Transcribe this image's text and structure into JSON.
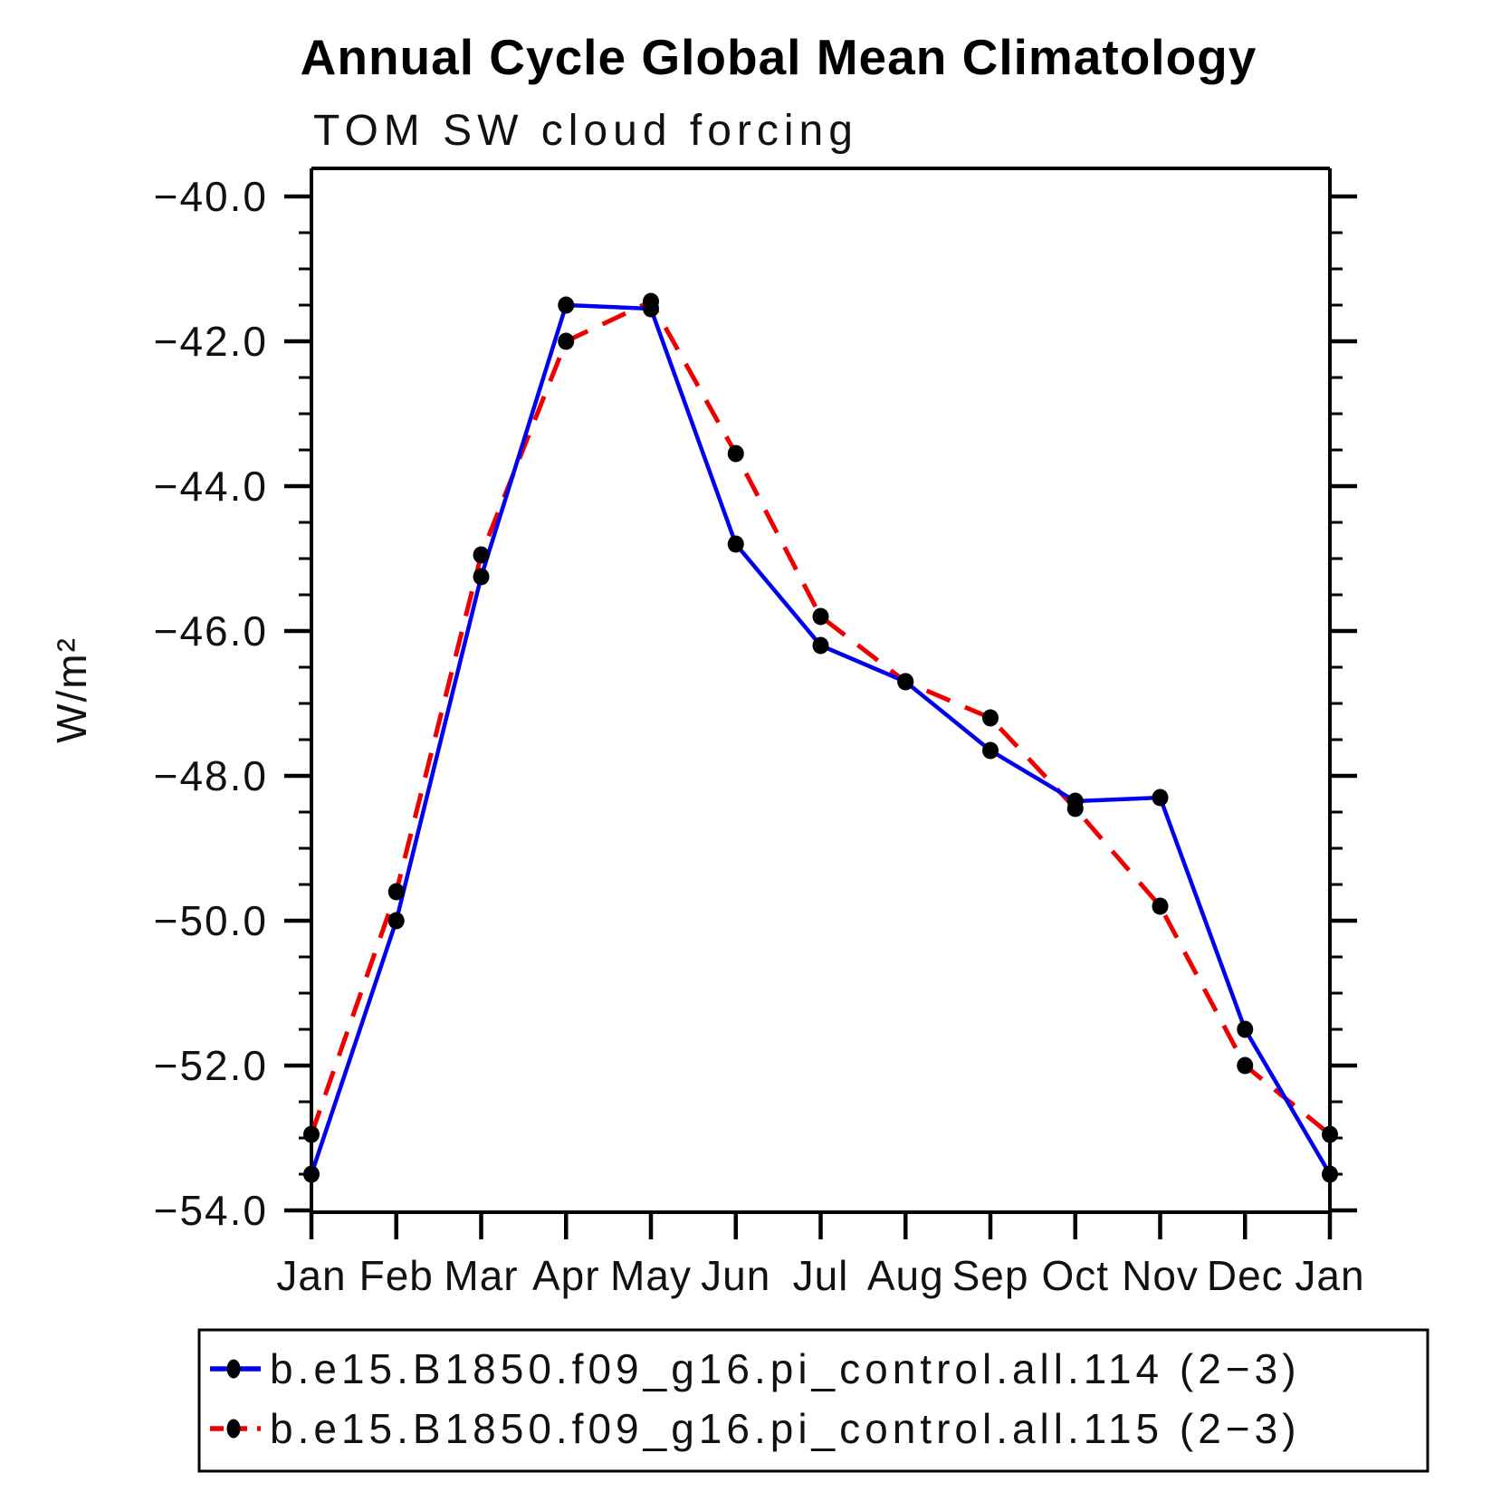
{
  "chart_data": {
    "type": "line",
    "title": "Annual Cycle Global Mean Climatology",
    "subtitle": "TOM SW cloud forcing",
    "ylabel": "W/m²",
    "xlabel": "",
    "categories": [
      "Jan",
      "Feb",
      "Mar",
      "Apr",
      "May",
      "Jun",
      "Jul",
      "Aug",
      "Sep",
      "Oct",
      "Nov",
      "Dec",
      "Jan"
    ],
    "ylim": [
      -54.0,
      -40.0
    ],
    "ytick_values": [
      -40.0,
      -42.0,
      -44.0,
      -46.0,
      -48.0,
      -50.0,
      -52.0,
      -54.0
    ],
    "ytick_labels": [
      "−40.0",
      "−42.0",
      "−44.0",
      "−46.0",
      "−48.0",
      "−50.0",
      "−52.0",
      "−54.0"
    ],
    "ytick_minor_step": 0.5,
    "grid": false,
    "legend_position": "bottom",
    "marker": "filled-circle",
    "marker_color": "#000000",
    "axis_color": "#000000",
    "series": [
      {
        "name": "b.e15.B1850.f09_g16.pi_control.all.114 (2−3)",
        "color": "#0000ee",
        "line_style": "solid",
        "values": [
          -53.5,
          -50.0,
          -45.25,
          -41.5,
          -41.55,
          -44.8,
          -46.2,
          -46.7,
          -47.65,
          -48.35,
          -48.3,
          -51.5,
          -53.5
        ]
      },
      {
        "name": "b.e15.B1850.f09_g16.pi_control.all.115 (2−3)",
        "color": "#ee0000",
        "line_style": "dashed",
        "values": [
          -52.95,
          -49.6,
          -44.95,
          -42.0,
          -41.45,
          -43.55,
          -45.8,
          -46.7,
          -47.2,
          -48.45,
          -49.8,
          -52.0,
          -52.95
        ]
      }
    ]
  }
}
